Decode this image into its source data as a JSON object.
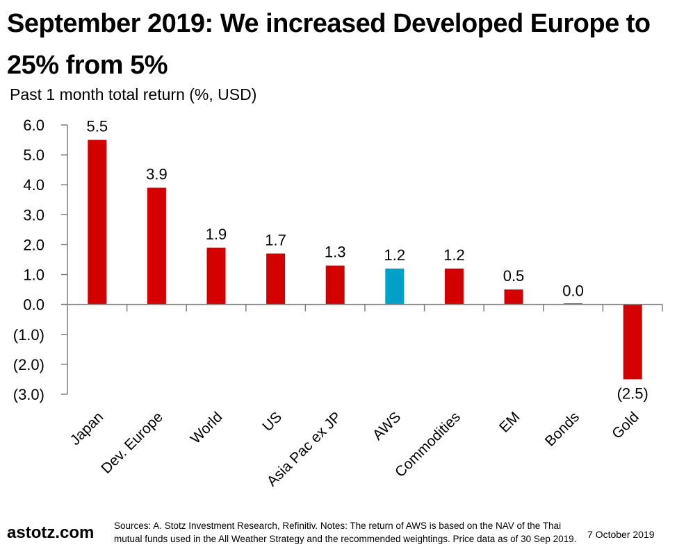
{
  "header": {
    "title": "September 2019: We increased Developed Europe to 25% from 5%",
    "subtitle": "Past 1 month total return (%, USD)"
  },
  "colors": {
    "bar_default": "#D40000",
    "bar_highlight": "#00A0C8",
    "axis": "#7f7f7f"
  },
  "chart_data": {
    "type": "bar",
    "title": "September 2019: We increased Developed Europe to 25% from 5%",
    "subtitle": "Past 1 month total return (%, USD)",
    "xlabel": "",
    "ylabel": "Past 1 month total return (%, USD)",
    "categories": [
      "Japan",
      "Dev. Europe",
      "World",
      "US",
      "Asia Pac ex JP",
      "AWS",
      "Commodities",
      "EM",
      "Bonds",
      "Gold"
    ],
    "values": [
      5.5,
      3.9,
      1.9,
      1.7,
      1.3,
      1.2,
      1.2,
      0.5,
      0.0,
      -2.5
    ],
    "data_labels": [
      "5.5",
      "3.9",
      "1.9",
      "1.7",
      "1.3",
      "1.2",
      "1.2",
      "0.5",
      "0.0",
      "(2.5)"
    ],
    "highlight_category": "AWS",
    "ylim": [
      -3.0,
      6.0
    ],
    "yticks": [
      6.0,
      5.0,
      4.0,
      3.0,
      2.0,
      1.0,
      0.0,
      -1.0,
      -2.0,
      -3.0
    ],
    "ytick_labels": [
      "6.0",
      "5.0",
      "4.0",
      "3.0",
      "2.0",
      "1.0",
      "0.0",
      "(1.0)",
      "(2.0)",
      "(3.0)"
    ],
    "grid": false,
    "legend": "none"
  },
  "footer": {
    "logo": "astotz.com",
    "note": "Sources: A. Stotz Investment Research, Refinitiv. Notes: The return of AWS is based on the NAV of the Thai mutual funds used in the All Weather Strategy and the recommended weightings. Price data as of 30 Sep 2019.",
    "date": "7 October 2019"
  }
}
